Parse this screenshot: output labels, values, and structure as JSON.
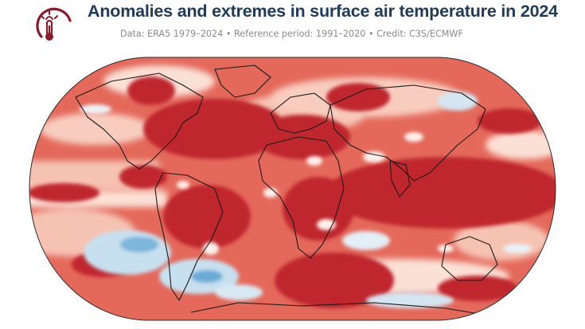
{
  "header": {
    "title": "Anomalies and extremes in surface air temperature in 2024",
    "subtitle": "Data: ERA5 1979–2024 • Reference period: 1991–2020 • Credit: C3S/ECMWF",
    "logo_icon": "thermometer-sun-icon"
  },
  "map": {
    "projection": "Robinson",
    "variable": "surface air temperature anomaly",
    "colors": {
      "strong_warm": "#c0272d",
      "warm": "#e4695b",
      "mild_warm": "#f4b5a4",
      "near_normal": "#fbe7df",
      "cool": "#c7e0ef",
      "strong_cool": "#5b9fd0",
      "coastline": "#1a1a1a",
      "brand": "#8b1a2b"
    }
  }
}
